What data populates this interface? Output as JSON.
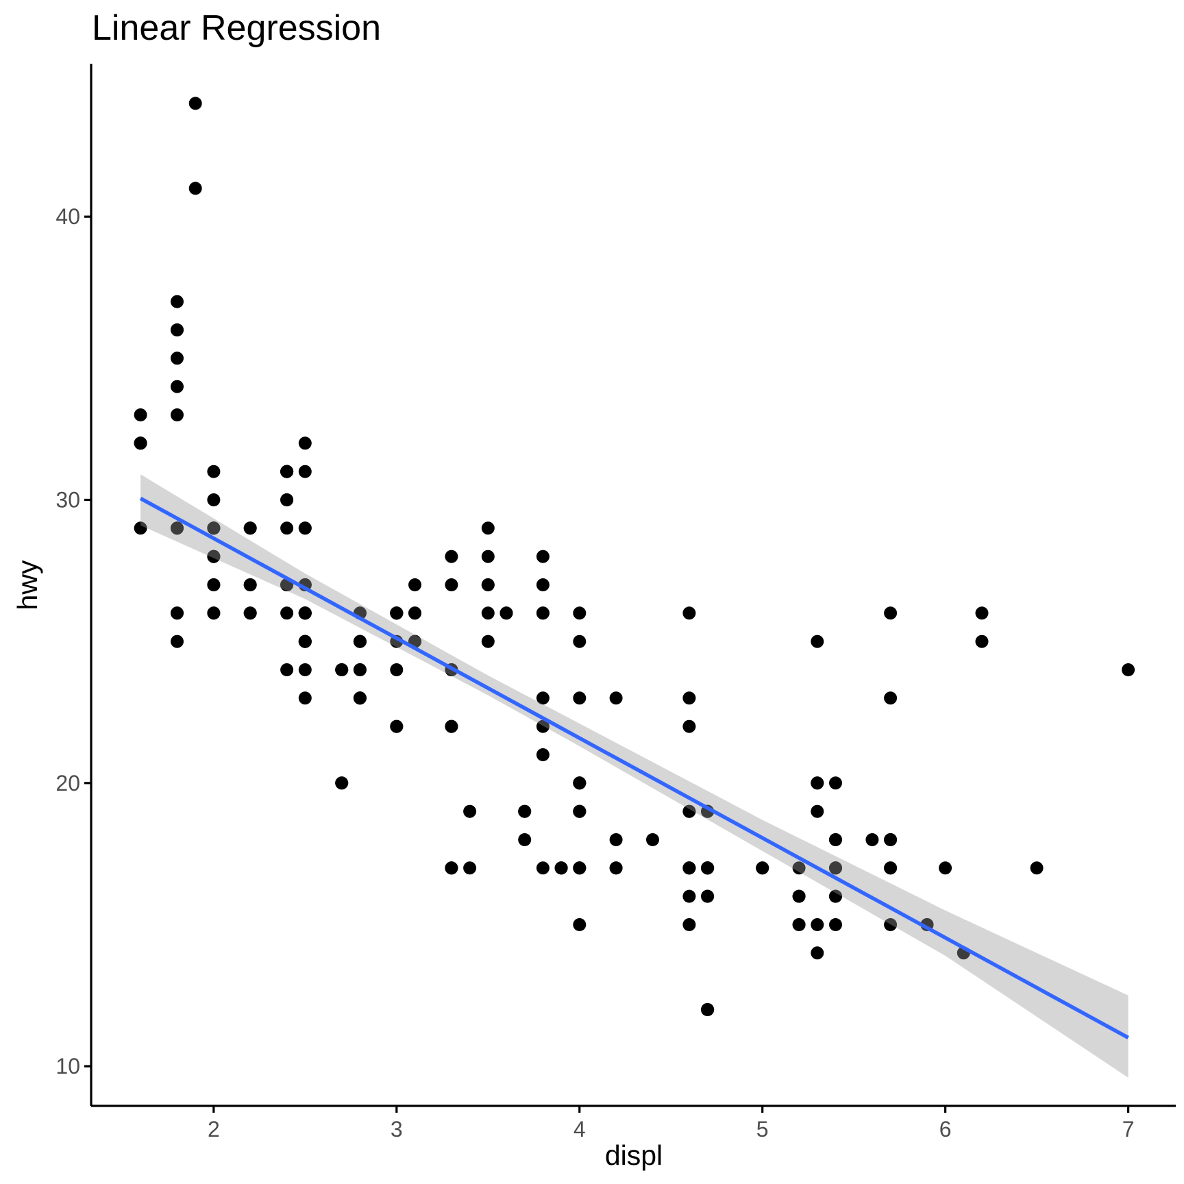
{
  "colors": {
    "points": "#000000",
    "fit_line": "#3366FF",
    "confidence_band": "#d9d9d9",
    "tick_text": "#4d4d4d",
    "background": "#ffffff"
  },
  "chart_data": {
    "type": "scatter",
    "title": "Linear Regression",
    "xlabel": "displ",
    "ylabel": "hwy",
    "xlim": [
      1.33,
      7.26
    ],
    "ylim": [
      8.6,
      45.4
    ],
    "x_ticks": [
      2,
      3,
      4,
      5,
      6,
      7
    ],
    "y_ticks": [
      10,
      20,
      30,
      40
    ],
    "grid": false,
    "legend": "none",
    "points": [
      [
        1.8,
        29
      ],
      [
        1.8,
        29
      ],
      [
        2.0,
        31
      ],
      [
        2.0,
        30
      ],
      [
        2.8,
        26
      ],
      [
        2.8,
        26
      ],
      [
        3.1,
        27
      ],
      [
        1.8,
        26
      ],
      [
        1.8,
        25
      ],
      [
        2.0,
        28
      ],
      [
        2.0,
        27
      ],
      [
        2.8,
        25
      ],
      [
        2.8,
        25
      ],
      [
        3.1,
        25
      ],
      [
        3.1,
        25
      ],
      [
        2.8,
        24
      ],
      [
        3.1,
        25
      ],
      [
        4.2,
        23
      ],
      [
        5.3,
        20
      ],
      [
        5.3,
        15
      ],
      [
        5.3,
        20
      ],
      [
        5.7,
        17
      ],
      [
        6.0,
        17
      ],
      [
        5.7,
        26
      ],
      [
        5.7,
        23
      ],
      [
        6.2,
        26
      ],
      [
        6.2,
        25
      ],
      [
        7.0,
        24
      ],
      [
        5.3,
        19
      ],
      [
        5.3,
        14
      ],
      [
        5.7,
        15
      ],
      [
        6.5,
        17
      ],
      [
        2.4,
        27
      ],
      [
        2.4,
        30
      ],
      [
        3.1,
        26
      ],
      [
        3.5,
        29
      ],
      [
        3.6,
        26
      ],
      [
        2.4,
        24
      ],
      [
        3.0,
        24
      ],
      [
        3.3,
        22
      ],
      [
        3.3,
        22
      ],
      [
        3.3,
        24
      ],
      [
        3.3,
        24
      ],
      [
        3.3,
        17
      ],
      [
        3.8,
        22
      ],
      [
        3.8,
        21
      ],
      [
        3.8,
        23
      ],
      [
        4.0,
        23
      ],
      [
        3.7,
        19
      ],
      [
        3.7,
        18
      ],
      [
        3.9,
        17
      ],
      [
        3.9,
        17
      ],
      [
        4.7,
        19
      ],
      [
        4.7,
        19
      ],
      [
        4.7,
        12
      ],
      [
        5.2,
        17
      ],
      [
        5.2,
        15
      ],
      [
        3.9,
        17
      ],
      [
        4.7,
        17
      ],
      [
        4.7,
        12
      ],
      [
        4.7,
        17
      ],
      [
        5.2,
        16
      ],
      [
        5.7,
        18
      ],
      [
        5.9,
        15
      ],
      [
        4.7,
        16
      ],
      [
        4.7,
        12
      ],
      [
        4.7,
        17
      ],
      [
        4.7,
        17
      ],
      [
        4.7,
        16
      ],
      [
        4.7,
        12
      ],
      [
        5.2,
        15
      ],
      [
        5.2,
        16
      ],
      [
        5.7,
        17
      ],
      [
        5.9,
        15
      ],
      [
        4.6,
        17
      ],
      [
        5.4,
        17
      ],
      [
        5.4,
        18
      ],
      [
        4.0,
        17
      ],
      [
        4.0,
        19
      ],
      [
        4.0,
        17
      ],
      [
        4.0,
        19
      ],
      [
        4.6,
        19
      ],
      [
        5.0,
        17
      ],
      [
        4.2,
        17
      ],
      [
        4.2,
        17
      ],
      [
        4.6,
        16
      ],
      [
        4.6,
        17
      ],
      [
        4.6,
        17
      ],
      [
        5.4,
        17
      ],
      [
        5.4,
        15
      ],
      [
        3.8,
        17
      ],
      [
        3.8,
        26
      ],
      [
        4.0,
        25
      ],
      [
        4.0,
        26
      ],
      [
        4.6,
        23
      ],
      [
        4.6,
        26
      ],
      [
        4.6,
        22
      ],
      [
        5.4,
        20
      ],
      [
        5.4,
        16
      ],
      [
        1.6,
        33
      ],
      [
        1.6,
        32
      ],
      [
        1.6,
        32
      ],
      [
        1.6,
        29
      ],
      [
        1.6,
        32
      ],
      [
        1.8,
        34
      ],
      [
        1.8,
        36
      ],
      [
        1.8,
        36
      ],
      [
        2.0,
        29
      ],
      [
        2.4,
        26
      ],
      [
        2.4,
        27
      ],
      [
        2.4,
        30
      ],
      [
        2.4,
        31
      ],
      [
        2.5,
        26
      ],
      [
        2.5,
        26
      ],
      [
        3.3,
        28
      ],
      [
        2.0,
        26
      ],
      [
        2.0,
        29
      ],
      [
        2.0,
        28
      ],
      [
        2.0,
        27
      ],
      [
        2.7,
        24
      ],
      [
        2.7,
        24
      ],
      [
        2.7,
        24
      ],
      [
        3.0,
        22
      ],
      [
        3.7,
        19
      ],
      [
        4.0,
        20
      ],
      [
        4.7,
        17
      ],
      [
        4.7,
        12
      ],
      [
        4.7,
        19
      ],
      [
        5.7,
        18
      ],
      [
        6.1,
        14
      ],
      [
        4.0,
        15
      ],
      [
        4.2,
        18
      ],
      [
        4.4,
        18
      ],
      [
        4.6,
        15
      ],
      [
        5.4,
        17
      ],
      [
        5.4,
        16
      ],
      [
        5.4,
        18
      ],
      [
        4.0,
        17
      ],
      [
        4.0,
        19
      ],
      [
        4.6,
        19
      ],
      [
        5.0,
        17
      ],
      [
        2.4,
        29
      ],
      [
        2.4,
        27
      ],
      [
        2.5,
        31
      ],
      [
        2.5,
        32
      ],
      [
        3.5,
        27
      ],
      [
        3.5,
        26
      ],
      [
        3.0,
        26
      ],
      [
        3.0,
        25
      ],
      [
        3.5,
        25
      ],
      [
        3.3,
        17
      ],
      [
        3.3,
        17
      ],
      [
        4.0,
        20
      ],
      [
        5.6,
        18
      ],
      [
        3.1,
        26
      ],
      [
        3.8,
        26
      ],
      [
        3.8,
        27
      ],
      [
        3.8,
        28
      ],
      [
        5.3,
        25
      ],
      [
        2.5,
        25
      ],
      [
        2.5,
        24
      ],
      [
        2.5,
        27
      ],
      [
        2.5,
        25
      ],
      [
        2.5,
        26
      ],
      [
        2.5,
        23
      ],
      [
        2.2,
        26
      ],
      [
        2.2,
        26
      ],
      [
        2.5,
        26
      ],
      [
        2.5,
        26
      ],
      [
        2.5,
        25
      ],
      [
        2.5,
        27
      ],
      [
        2.5,
        25
      ],
      [
        2.5,
        27
      ],
      [
        2.7,
        20
      ],
      [
        2.7,
        20
      ],
      [
        3.4,
        19
      ],
      [
        3.4,
        17
      ],
      [
        4.0,
        20
      ],
      [
        4.7,
        17
      ],
      [
        2.2,
        29
      ],
      [
        2.2,
        27
      ],
      [
        2.4,
        31
      ],
      [
        2.4,
        31
      ],
      [
        3.0,
        26
      ],
      [
        3.0,
        26
      ],
      [
        3.5,
        28
      ],
      [
        2.2,
        27
      ],
      [
        2.2,
        29
      ],
      [
        2.4,
        31
      ],
      [
        2.4,
        31
      ],
      [
        3.0,
        26
      ],
      [
        3.0,
        26
      ],
      [
        3.5,
        27
      ],
      [
        3.0,
        22
      ],
      [
        3.3,
        27
      ],
      [
        1.8,
        35
      ],
      [
        1.8,
        37
      ],
      [
        1.8,
        33
      ],
      [
        2.0,
        26
      ],
      [
        2.0,
        29
      ],
      [
        2.8,
        25
      ],
      [
        1.9,
        44
      ],
      [
        1.9,
        41
      ],
      [
        1.8,
        29
      ],
      [
        1.8,
        26
      ],
      [
        2.5,
        29
      ],
      [
        2.5,
        29
      ],
      [
        2.8,
        23
      ],
      [
        2.8,
        24
      ],
      [
        2.0,
        28
      ],
      [
        2.0,
        29
      ],
      [
        2.8,
        23
      ],
      [
        2.8,
        23
      ],
      [
        3.6,
        26
      ]
    ],
    "regression_line": {
      "x": [
        1.6,
        7.0
      ],
      "y": [
        30.05,
        11.01
      ]
    },
    "confidence_band": [
      {
        "x": 1.6,
        "lower": 29.1,
        "upper": 30.9
      },
      {
        "x": 2.5,
        "lower": 26.5,
        "upper": 27.4
      },
      {
        "x": 3.5,
        "lower": 23.1,
        "upper": 23.8
      },
      {
        "x": 4.0,
        "lower": 21.3,
        "upper": 22.1
      },
      {
        "x": 5.0,
        "lower": 17.6,
        "upper": 18.7
      },
      {
        "x": 6.0,
        "lower": 13.9,
        "upper": 15.5
      },
      {
        "x": 7.0,
        "lower": 9.6,
        "upper": 12.5
      }
    ]
  }
}
